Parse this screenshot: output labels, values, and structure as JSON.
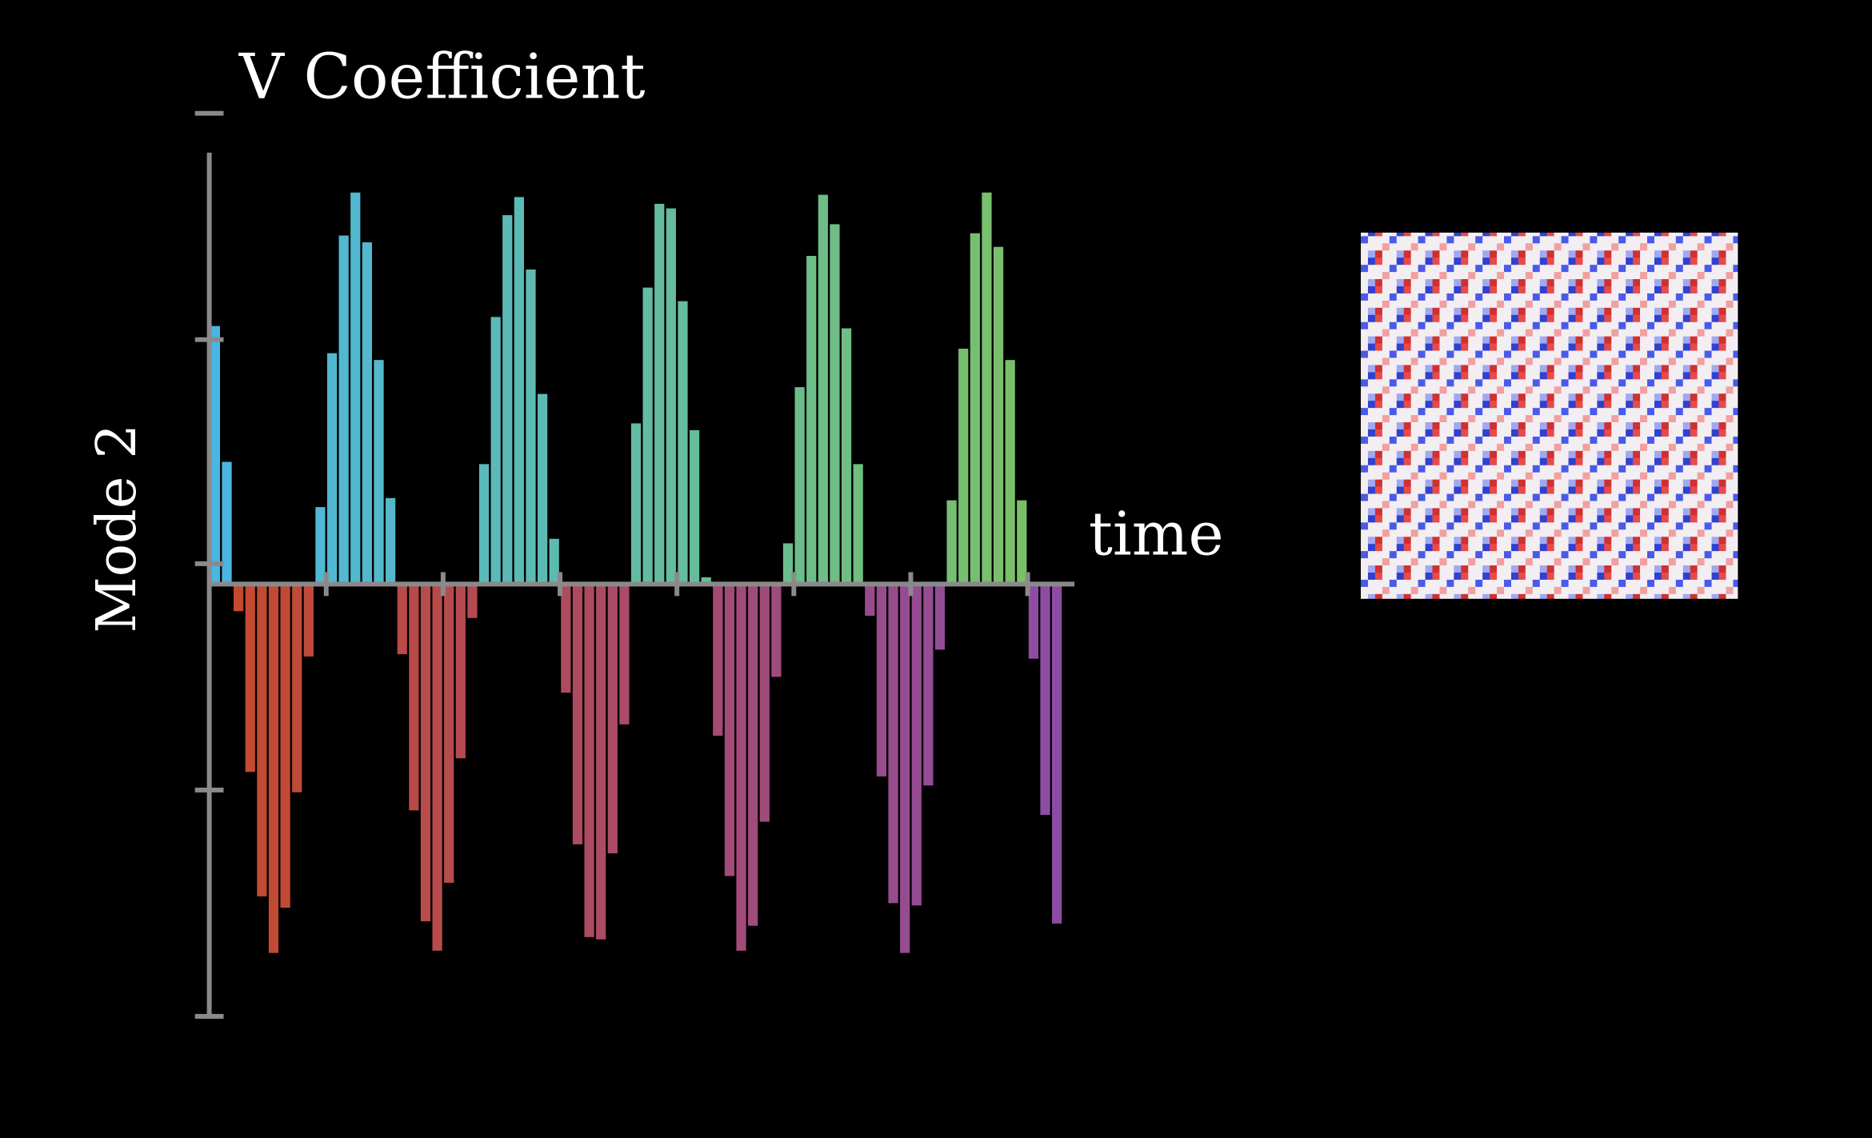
{
  "chart_data": {
    "type": "bar",
    "title": "V Coefficient",
    "y_label": "Mode 2",
    "x_label": "time",
    "values": [
      1.14,
      0.54,
      -0.12,
      -0.83,
      -1.38,
      -1.63,
      -1.43,
      -0.92,
      -0.32,
      0.34,
      1.02,
      1.54,
      1.73,
      1.51,
      0.99,
      0.38,
      -0.31,
      -1.0,
      -1.49,
      -1.62,
      -1.32,
      -0.77,
      -0.15,
      0.53,
      1.18,
      1.63,
      1.71,
      1.39,
      0.84,
      0.2,
      -0.48,
      -1.15,
      -1.56,
      -1.57,
      -1.19,
      -0.62,
      0.71,
      1.31,
      1.68,
      1.66,
      1.25,
      0.68,
      0.03,
      -0.67,
      -1.29,
      -1.62,
      -1.51,
      -1.05,
      -0.41,
      0.18,
      0.87,
      1.45,
      1.72,
      1.59,
      1.13,
      0.53,
      -0.14,
      -0.85,
      -1.41,
      -1.63,
      -1.42,
      -0.89,
      -0.29,
      0.37,
      1.04,
      1.55,
      1.73,
      1.49,
      0.99,
      0.37,
      -0.33,
      -1.02,
      -1.5
    ],
    "colors": {
      "positive": [
        "#4ab6e4",
        "#7cc063"
      ],
      "negative": [
        "#c64a2c",
        "#8c4ca6"
      ]
    },
    "xlim": [
      0,
      74
    ],
    "xticks": [
      10,
      20,
      30,
      40,
      50,
      60,
      70
    ],
    "ylim": [
      -1.91,
      2.08
    ],
    "yticks": [
      -1.91,
      -0.91,
      0.09,
      1.08,
      2.08
    ]
  }
}
